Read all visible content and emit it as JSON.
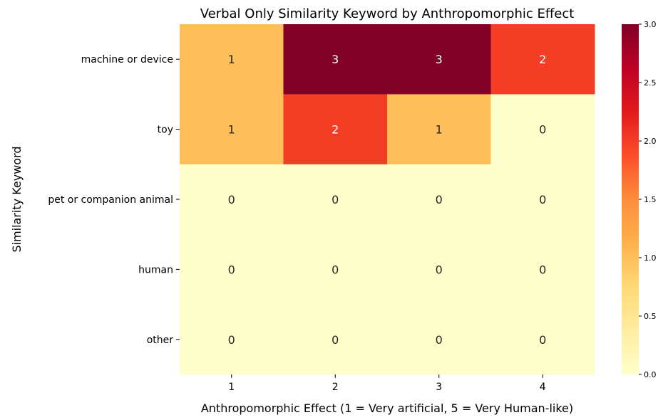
{
  "chart_data": {
    "type": "heatmap",
    "title": "Verbal Only Similarity Keyword by Anthropomorphic Effect",
    "xlabel": "Anthropomorphic Effect (1 = Very artificial, 5 = Very Human-like)",
    "ylabel": "Similarity Keyword",
    "x_categories": [
      "1",
      "2",
      "3",
      "4"
    ],
    "y_categories": [
      "machine or device",
      "toy",
      "pet or companion animal",
      "human",
      "other"
    ],
    "values": [
      [
        1,
        3,
        3,
        2
      ],
      [
        1,
        2,
        1,
        0
      ],
      [
        0,
        0,
        0,
        0
      ],
      [
        0,
        0,
        0,
        0
      ],
      [
        0,
        0,
        0,
        0
      ]
    ],
    "colormap": "YlOrRd",
    "vmin": 0,
    "vmax": 3,
    "colorbar_ticks": [
      "0.0",
      "0.5",
      "1.0",
      "1.5",
      "2.0",
      "2.5",
      "3.0"
    ],
    "annotations": true,
    "grid": false,
    "colors": {
      "zero": "#ffffcc",
      "one": "#febf5a",
      "two": "#f43d25",
      "three": "#800026"
    }
  }
}
